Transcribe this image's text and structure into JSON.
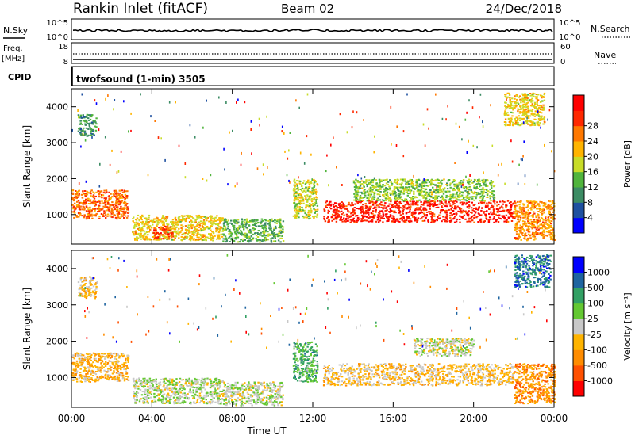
{
  "header": {
    "station": "Rankin Inlet (fitACF)",
    "beam": "Beam 02",
    "date": "24/Dec/2018"
  },
  "strip_labels": {
    "nsky": "N.Sky",
    "nsearch": "N.Search",
    "freq_line1": "Freq.",
    "freq_line2": "[MHz]",
    "nave": "Nave",
    "cpid": "CPID",
    "cpid_value": "twofsound (1-min) 3505"
  },
  "strip_ticks": {
    "noise_left": [
      "10^5",
      "10^0"
    ],
    "noise_right": [
      "10^5",
      "10^0"
    ],
    "freq_left": [
      "18",
      "8"
    ],
    "nave_right": [
      "60",
      "0"
    ]
  },
  "colors": {
    "power_scale": [
      "#0000ff",
      "#1e50a0",
      "#3c8c64",
      "#50b43c",
      "#c8dc28",
      "#ffb400",
      "#ff7800",
      "#ff2800",
      "#ff0000"
    ],
    "velocity_scale": [
      "#ff0000",
      "#ff5000",
      "#ff8c00",
      "#ffb400",
      "#c8c8c8",
      "#64c832",
      "#32a064",
      "#1e64a0",
      "#0000ff"
    ]
  },
  "chart_data": [
    {
      "type": "heatmap",
      "panel": "power",
      "title": "",
      "xlabel": "Time UT",
      "ylabel": "Slant Range [km]",
      "xticks": [
        "00:00",
        "04:00",
        "08:00",
        "12:00",
        "16:00",
        "20:00",
        "00:00"
      ],
      "xlim_hours": [
        0,
        24
      ],
      "yticks": [
        "1000",
        "2000",
        "3000",
        "4000"
      ],
      "ylim": [
        180,
        4500
      ],
      "colorbar": {
        "label": "Power [dB]",
        "ticks": [
          "4",
          "8",
          "12",
          "16",
          "20",
          "24",
          "28"
        ],
        "range": [
          0,
          32
        ]
      },
      "regions": [
        {
          "t": [
            0.0,
            2.8
          ],
          "r": [
            900,
            1700
          ],
          "value": 24
        },
        {
          "t": [
            0.3,
            1.2
          ],
          "r": [
            3200,
            3800
          ],
          "value": 10
        },
        {
          "t": [
            3.0,
            7.5
          ],
          "r": [
            300,
            1000
          ],
          "value": 18
        },
        {
          "t": [
            4.0,
            5.0
          ],
          "r": [
            350,
            700
          ],
          "value": 26
        },
        {
          "t": [
            7.5,
            10.5
          ],
          "r": [
            250,
            900
          ],
          "value": 12
        },
        {
          "t": [
            11.0,
            12.2
          ],
          "r": [
            900,
            2000
          ],
          "value": 16
        },
        {
          "t": [
            12.5,
            22.0
          ],
          "r": [
            800,
            1400
          ],
          "value": 28
        },
        {
          "t": [
            14.0,
            21.0
          ],
          "r": [
            1400,
            2000
          ],
          "value": 14
        },
        {
          "t": [
            22.0,
            24.0
          ],
          "r": [
            300,
            1400
          ],
          "value": 22
        },
        {
          "t": [
            21.5,
            23.5
          ],
          "r": [
            3500,
            4400
          ],
          "value": 18
        }
      ]
    },
    {
      "type": "heatmap",
      "panel": "velocity",
      "title": "",
      "xlabel": "Time UT",
      "ylabel": "Slant Range [km]",
      "xticks": [
        "00:00",
        "04:00",
        "08:00",
        "12:00",
        "16:00",
        "20:00",
        "00:00"
      ],
      "xlim_hours": [
        0,
        24
      ],
      "yticks": [
        "1000",
        "2000",
        "3000",
        "4000"
      ],
      "ylim": [
        180,
        4500
      ],
      "colorbar": {
        "label": "Velocity [m s⁻¹]",
        "ticks": [
          "1000",
          "500",
          "100",
          "25",
          "-25",
          "-100",
          "-500",
          "-1000"
        ],
        "range": [
          -1200,
          1200
        ]
      },
      "regions": [
        {
          "t": [
            0.0,
            2.8
          ],
          "r": [
            900,
            1700
          ],
          "value": -300
        },
        {
          "t": [
            0.3,
            1.2
          ],
          "r": [
            3200,
            3800
          ],
          "value": -200
        },
        {
          "t": [
            3.0,
            7.5
          ],
          "r": [
            300,
            1000
          ],
          "value": 80
        },
        {
          "t": [
            7.5,
            10.5
          ],
          "r": [
            250,
            900
          ],
          "value": 60
        },
        {
          "t": [
            11.0,
            12.2
          ],
          "r": [
            900,
            2000
          ],
          "value": 400
        },
        {
          "t": [
            12.5,
            22.0
          ],
          "r": [
            800,
            1400
          ],
          "value": -200
        },
        {
          "t": [
            17.0,
            20.0
          ],
          "r": [
            1600,
            2100
          ],
          "value": 0
        },
        {
          "t": [
            22.0,
            24.0
          ],
          "r": [
            300,
            1400
          ],
          "value": -500
        },
        {
          "t": [
            22.0,
            23.8
          ],
          "r": [
            3500,
            4400
          ],
          "value": 700
        }
      ]
    }
  ]
}
